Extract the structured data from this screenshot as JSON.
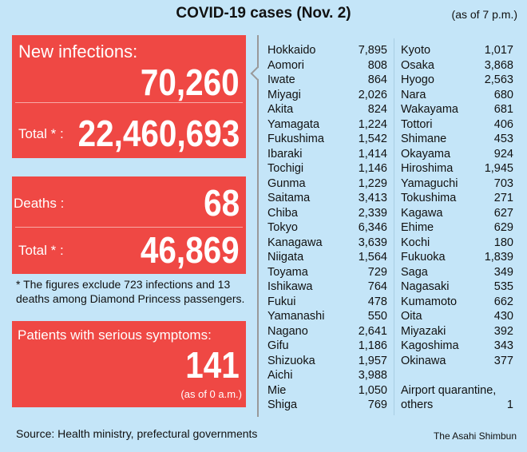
{
  "title": "COVID-19 cases (Nov. 2)",
  "as_of": "(as of 7 p.m.)",
  "new_infections": {
    "label": "New infections:",
    "value": "70,260",
    "total_label": "Total * :",
    "total": "22,460,693"
  },
  "deaths": {
    "label": "Deaths :",
    "value": "68",
    "total_label": "Total * :",
    "total": "46,869"
  },
  "footnote": "* The figures exclude 723 infections and 13 deaths among Diamond Princess passengers.",
  "serious": {
    "label": "Patients with serious symptoms:",
    "value": "141",
    "note": "(as of 0 a.m.)"
  },
  "source": "Source: Health ministry, prefectural governments",
  "credit": "The Asahi Shimbun",
  "colors": {
    "background": "#c4e5f8",
    "panel": "#ef4844"
  },
  "prefectures_left": [
    [
      "Hokkaido",
      "7,895"
    ],
    [
      "Aomori",
      "808"
    ],
    [
      "Iwate",
      "864"
    ],
    [
      "Miyagi",
      "2,026"
    ],
    [
      "Akita",
      "824"
    ],
    [
      "Yamagata",
      "1,224"
    ],
    [
      "Fukushima",
      "1,542"
    ],
    [
      "Ibaraki",
      "1,414"
    ],
    [
      "Tochigi",
      "1,146"
    ],
    [
      "Gunma",
      "1,229"
    ],
    [
      "Saitama",
      "3,413"
    ],
    [
      "Chiba",
      "2,339"
    ],
    [
      "Tokyo",
      "6,346"
    ],
    [
      "Kanagawa",
      "3,639"
    ],
    [
      "Niigata",
      "1,564"
    ],
    [
      "Toyama",
      "729"
    ],
    [
      "Ishikawa",
      "764"
    ],
    [
      "Fukui",
      "478"
    ],
    [
      "Yamanashi",
      "550"
    ],
    [
      "Nagano",
      "2,641"
    ],
    [
      "Gifu",
      "1,186"
    ],
    [
      "Shizuoka",
      "1,957"
    ],
    [
      "Aichi",
      "3,988"
    ],
    [
      "Mie",
      "1,050"
    ],
    [
      "Shiga",
      "769"
    ]
  ],
  "prefectures_right": [
    [
      "Kyoto",
      "1,017"
    ],
    [
      "Osaka",
      "3,868"
    ],
    [
      "Hyogo",
      "2,563"
    ],
    [
      "Nara",
      "680"
    ],
    [
      "Wakayama",
      "681"
    ],
    [
      "Tottori",
      "406"
    ],
    [
      "Shimane",
      "453"
    ],
    [
      "Okayama",
      "924"
    ],
    [
      "Hiroshima",
      "1,945"
    ],
    [
      "Yamaguchi",
      "703"
    ],
    [
      "Tokushima",
      "271"
    ],
    [
      "Kagawa",
      "627"
    ],
    [
      "Ehime",
      "629"
    ],
    [
      "Kochi",
      "180"
    ],
    [
      "Fukuoka",
      "1,839"
    ],
    [
      "Saga",
      "349"
    ],
    [
      "Nagasaki",
      "535"
    ],
    [
      "Kumamoto",
      "662"
    ],
    [
      "Oita",
      "430"
    ],
    [
      "Miyazaki",
      "392"
    ],
    [
      "Kagoshima",
      "343"
    ],
    [
      "Okinawa",
      "377"
    ]
  ],
  "airport": {
    "label_line1": "Airport quarantine,",
    "label_line2": "others",
    "value": "1"
  }
}
